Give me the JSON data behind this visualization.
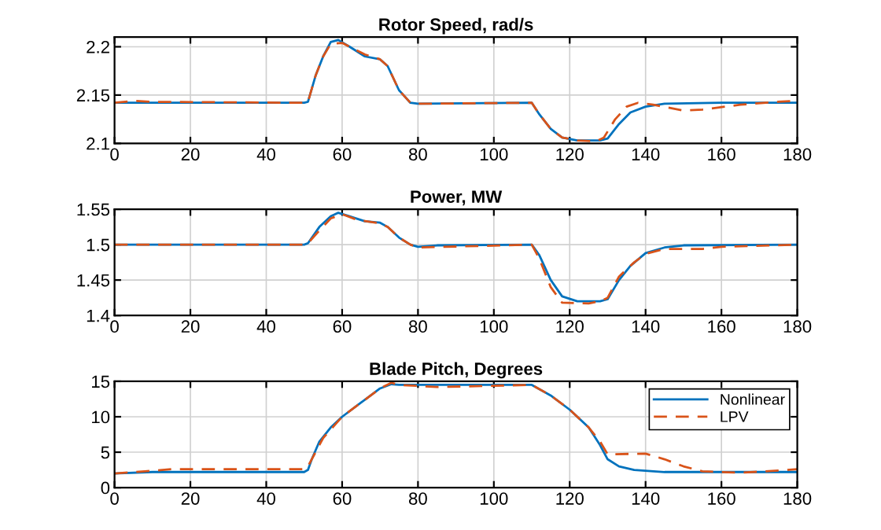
{
  "chart_data": [
    {
      "type": "line",
      "title": "Rotor Speed, rad/s",
      "xlim": [
        0,
        180
      ],
      "xticks": [
        0,
        20,
        40,
        60,
        80,
        100,
        120,
        140,
        160,
        180
      ],
      "ylim": [
        2.1,
        2.21
      ],
      "yticks": [
        2.1,
        2.15,
        2.2
      ],
      "grid": true,
      "series": [
        {
          "color": "#0072bd",
          "line_style": "solid",
          "x": [
            0,
            50,
            51,
            53,
            55,
            57,
            59,
            62,
            66,
            70,
            72,
            75,
            78,
            80,
            110,
            112,
            115,
            118,
            122,
            128,
            130,
            133,
            136,
            140,
            145,
            160,
            180
          ],
          "values": [
            2.142,
            2.142,
            2.143,
            2.17,
            2.19,
            2.205,
            2.207,
            2.2,
            2.19,
            2.187,
            2.18,
            2.155,
            2.142,
            2.141,
            2.142,
            2.13,
            2.115,
            2.106,
            2.103,
            2.103,
            2.105,
            2.12,
            2.132,
            2.138,
            2.141,
            2.142,
            2.142
          ]
        },
        {
          "color": "#d95319",
          "line_style": "dashed",
          "x": [
            0,
            5,
            10,
            50,
            51,
            53,
            55,
            57,
            60,
            66,
            70,
            72,
            75,
            78,
            80,
            110,
            112,
            115,
            118,
            122,
            127,
            129,
            132,
            135,
            138,
            142,
            150,
            155,
            165,
            175,
            180
          ],
          "values": [
            2.142,
            2.144,
            2.143,
            2.142,
            2.143,
            2.17,
            2.19,
            2.203,
            2.204,
            2.192,
            2.187,
            2.18,
            2.155,
            2.142,
            2.141,
            2.142,
            2.13,
            2.115,
            2.106,
            2.103,
            2.102,
            2.106,
            2.125,
            2.138,
            2.142,
            2.14,
            2.134,
            2.135,
            2.14,
            2.143,
            2.144
          ]
        }
      ]
    },
    {
      "type": "line",
      "title": "Power, MW",
      "xlim": [
        0,
        180
      ],
      "xticks": [
        0,
        20,
        40,
        60,
        80,
        100,
        120,
        140,
        160,
        180
      ],
      "ylim": [
        1.4,
        1.55
      ],
      "yticks": [
        1.4,
        1.45,
        1.5,
        1.55
      ],
      "grid": true,
      "series": [
        {
          "color": "#0072bd",
          "line_style": "solid",
          "x": [
            0,
            50,
            51,
            54,
            57,
            59,
            62,
            66,
            70,
            72,
            75,
            78,
            80,
            85,
            110,
            112,
            115,
            118,
            122,
            128,
            130,
            133,
            136,
            140,
            145,
            150,
            180
          ],
          "values": [
            1.5,
            1.5,
            1.502,
            1.525,
            1.54,
            1.545,
            1.54,
            1.533,
            1.531,
            1.525,
            1.51,
            1.5,
            1.497,
            1.499,
            1.5,
            1.485,
            1.45,
            1.427,
            1.42,
            1.42,
            1.423,
            1.45,
            1.47,
            1.488,
            1.496,
            1.499,
            1.5
          ]
        },
        {
          "color": "#d95319",
          "line_style": "dashed",
          "x": [
            0,
            50,
            51,
            54,
            57,
            60,
            64,
            70,
            72,
            75,
            78,
            80,
            110,
            112,
            115,
            118,
            125,
            128,
            130,
            133,
            137,
            140,
            145,
            155,
            160,
            180
          ],
          "values": [
            1.5,
            1.5,
            1.502,
            1.52,
            1.537,
            1.543,
            1.535,
            1.53,
            1.525,
            1.51,
            1.5,
            1.496,
            1.5,
            1.48,
            1.44,
            1.418,
            1.417,
            1.42,
            1.425,
            1.455,
            1.475,
            1.487,
            1.494,
            1.494,
            1.497,
            1.5
          ]
        }
      ]
    },
    {
      "type": "line",
      "title": "Blade Pitch, Degrees",
      "xlim": [
        0,
        180
      ],
      "xticks": [
        0,
        20,
        40,
        60,
        80,
        100,
        120,
        140,
        160,
        180
      ],
      "ylim": [
        0,
        15
      ],
      "yticks": [
        0,
        5,
        10,
        15
      ],
      "grid": true,
      "legend": "top right",
      "series": [
        {
          "name": "Nonlinear",
          "color": "#0072bd",
          "line_style": "solid",
          "x": [
            0,
            10,
            50,
            51,
            52,
            54,
            57,
            60,
            65,
            70,
            73,
            75,
            110,
            115,
            120,
            125,
            128,
            130,
            133,
            137,
            145,
            180
          ],
          "values": [
            2,
            2.2,
            2.2,
            2.5,
            4,
            6.5,
            8.5,
            10,
            12,
            14,
            14.6,
            14.5,
            14.5,
            13,
            11,
            8.5,
            6,
            4,
            3,
            2.5,
            2.2,
            2.2
          ]
        },
        {
          "name": "LPV",
          "color": "#d95319",
          "line_style": "dashed",
          "x": [
            0,
            8,
            15,
            50,
            51,
            53,
            55,
            60,
            65,
            70,
            73,
            75,
            85,
            110,
            115,
            120,
            125,
            128,
            130,
            140,
            145,
            150,
            155,
            165,
            175,
            180
          ],
          "values": [
            2,
            2.3,
            2.6,
            2.6,
            3,
            5,
            7,
            10,
            12,
            14,
            14.8,
            14.5,
            14.2,
            14.5,
            13,
            11,
            8.5,
            6.5,
            4.7,
            4.8,
            4,
            3,
            2.3,
            2.1,
            2.4,
            2.6
          ]
        }
      ]
    }
  ]
}
